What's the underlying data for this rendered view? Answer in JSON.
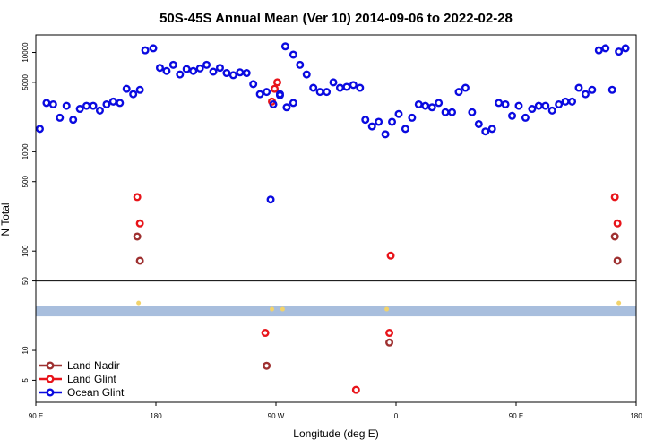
{
  "chart_data": {
    "type": "scatter",
    "title": "50S-45S Annual Mean (Ver 10)   2014-09-06 to 2022-02-28",
    "xlabel": "Longitude (deg E)",
    "ylabel": "N Total",
    "x_ticks": [
      {
        "value": 90,
        "label": "90 E"
      },
      {
        "value": 180,
        "label": "180"
      },
      {
        "value": 270,
        "label": "90 W"
      },
      {
        "value": 360,
        "label": "0"
      },
      {
        "value": 450,
        "label": "90 E"
      },
      {
        "value": 540,
        "label": "180"
      }
    ],
    "xlim": [
      90,
      540
    ],
    "ylim": [
      3,
      15000
    ],
    "y_scale": "log",
    "y_ticks": [
      {
        "value": 5,
        "label": "5"
      },
      {
        "value": 10,
        "label": "10"
      },
      {
        "value": 50,
        "label": "50"
      },
      {
        "value": 100,
        "label": "100"
      },
      {
        "value": 500,
        "label": "500"
      },
      {
        "value": 1000,
        "label": "1000"
      },
      {
        "value": 5000,
        "label": "5000"
      },
      {
        "value": 10000,
        "label": "10000"
      }
    ],
    "divider_value": 50,
    "band": {
      "low": 22,
      "high": 28,
      "color": "#a8bedd"
    },
    "small_markers": {
      "color": "#f2d36b",
      "points": [
        [
          167,
          30
        ],
        [
          275,
          26
        ],
        [
          267,
          26
        ],
        [
          353,
          26
        ],
        [
          527,
          30
        ]
      ]
    },
    "legend": {
      "position": "bottom-left"
    },
    "series": [
      {
        "name": "Land Nadir",
        "color": "#9e3030",
        "points": [
          [
            166,
            140
          ],
          [
            168,
            80
          ],
          [
            263,
            7
          ],
          [
            355,
            12
          ],
          [
            524,
            140
          ],
          [
            526,
            80
          ]
        ]
      },
      {
        "name": "Land Glint",
        "color": "#e8141a",
        "points": [
          [
            166,
            350
          ],
          [
            168,
            190
          ],
          [
            262,
            15
          ],
          [
            267,
            3200
          ],
          [
            269,
            4300
          ],
          [
            271,
            5000
          ],
          [
            330,
            4
          ],
          [
            355,
            15
          ],
          [
            356,
            90
          ],
          [
            524,
            350
          ],
          [
            526,
            190
          ]
        ]
      },
      {
        "name": "Ocean Glint",
        "color": "#0a0ae0",
        "points": [
          [
            93,
            1700
          ],
          [
            98,
            3100
          ],
          [
            103,
            3000
          ],
          [
            108,
            2200
          ],
          [
            113,
            2900
          ],
          [
            118,
            2100
          ],
          [
            123,
            2700
          ],
          [
            128,
            2900
          ],
          [
            133,
            2900
          ],
          [
            138,
            2600
          ],
          [
            143,
            3000
          ],
          [
            148,
            3200
          ],
          [
            153,
            3100
          ],
          [
            158,
            4300
          ],
          [
            163,
            3800
          ],
          [
            168,
            4200
          ],
          [
            172,
            10500
          ],
          [
            178,
            11000
          ],
          [
            183,
            7000
          ],
          [
            188,
            6500
          ],
          [
            193,
            7500
          ],
          [
            198,
            6000
          ],
          [
            203,
            6800
          ],
          [
            208,
            6500
          ],
          [
            213,
            6900
          ],
          [
            218,
            7500
          ],
          [
            223,
            6400
          ],
          [
            228,
            7000
          ],
          [
            233,
            6200
          ],
          [
            238,
            5900
          ],
          [
            243,
            6300
          ],
          [
            248,
            6200
          ],
          [
            253,
            4800
          ],
          [
            258,
            3800
          ],
          [
            263,
            4000
          ],
          [
            268,
            3000
          ],
          [
            273,
            3800
          ],
          [
            278,
            2800
          ],
          [
            283,
            3100
          ],
          [
            266,
            330
          ],
          [
            273,
            3700
          ],
          [
            277,
            11500
          ],
          [
            283,
            9500
          ],
          [
            288,
            7500
          ],
          [
            293,
            6000
          ],
          [
            298,
            4400
          ],
          [
            303,
            4000
          ],
          [
            308,
            4000
          ],
          [
            313,
            5000
          ],
          [
            318,
            4400
          ],
          [
            323,
            4500
          ],
          [
            328,
            4700
          ],
          [
            333,
            4400
          ],
          [
            337,
            2100
          ],
          [
            342,
            1800
          ],
          [
            347,
            2000
          ],
          [
            352,
            1500
          ],
          [
            357,
            2000
          ],
          [
            362,
            2400
          ],
          [
            367,
            1700
          ],
          [
            372,
            2200
          ],
          [
            377,
            3000
          ],
          [
            382,
            2900
          ],
          [
            387,
            2800
          ],
          [
            392,
            3100
          ],
          [
            397,
            2500
          ],
          [
            402,
            2500
          ],
          [
            407,
            4000
          ],
          [
            412,
            4400
          ],
          [
            417,
            2500
          ],
          [
            422,
            1900
          ],
          [
            427,
            1600
          ],
          [
            432,
            1700
          ],
          [
            437,
            3100
          ],
          [
            442,
            3000
          ],
          [
            447,
            2300
          ],
          [
            452,
            2900
          ],
          [
            457,
            2200
          ],
          [
            462,
            2700
          ],
          [
            467,
            2900
          ],
          [
            472,
            2900
          ],
          [
            477,
            2600
          ],
          [
            482,
            3000
          ],
          [
            487,
            3200
          ],
          [
            492,
            3200
          ],
          [
            497,
            4400
          ],
          [
            502,
            3800
          ],
          [
            507,
            4200
          ],
          [
            512,
            10500
          ],
          [
            517,
            11000
          ],
          [
            522,
            4200
          ],
          [
            527,
            10200
          ],
          [
            532,
            11000
          ]
        ]
      }
    ]
  }
}
